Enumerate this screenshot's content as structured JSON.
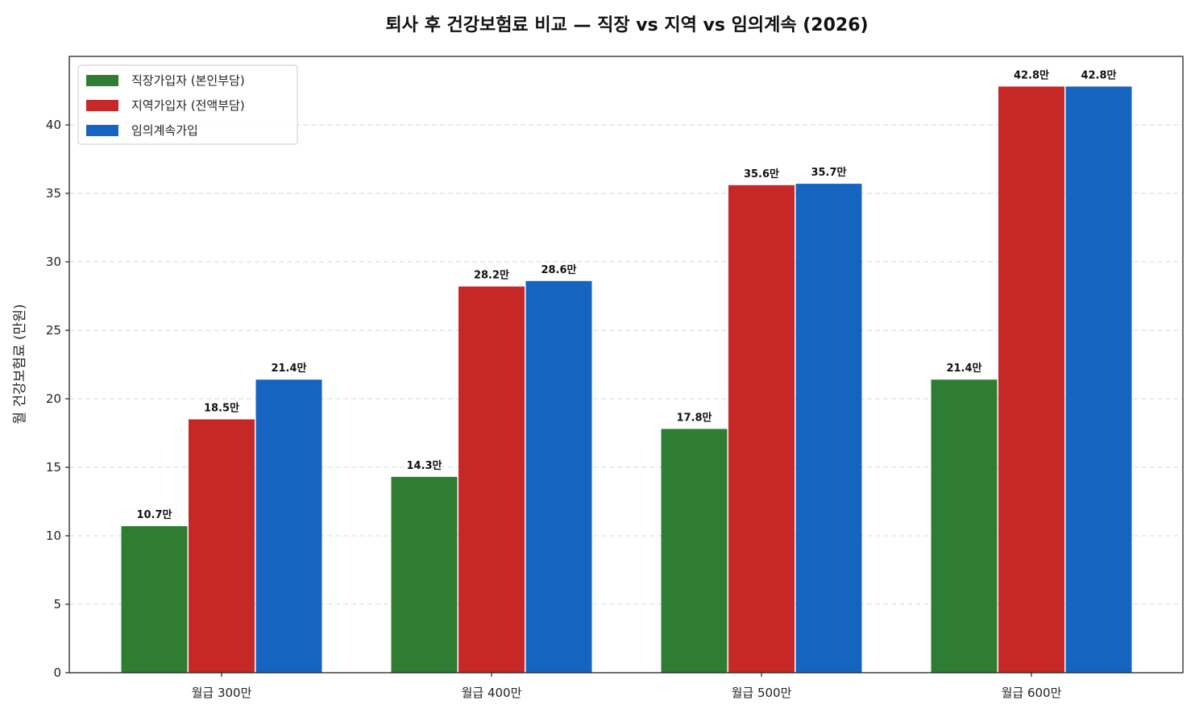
{
  "chart_data": {
    "type": "bar",
    "title": "퇴사 후 건강보험료 비교 — 직장 vs 지역 vs 임의계속 (2026)",
    "xlabel": "",
    "ylabel": "월 건강보험료 (만원)",
    "ylim": [
      0,
      45
    ],
    "yticks": [
      0,
      5,
      10,
      15,
      20,
      25,
      30,
      35,
      40
    ],
    "grid": "y-dashed",
    "legend_position": "top-left",
    "value_suffix": "만",
    "categories": [
      "월급 300만",
      "월급 400만",
      "월급 500만",
      "월급 600만"
    ],
    "series": [
      {
        "name": "직장가입자 (본인부담)",
        "color": "#2e7d32",
        "values": [
          10.7,
          14.3,
          17.8,
          21.4
        ],
        "labels": [
          "10.7만",
          "14.3만",
          "17.8만",
          "21.4만"
        ]
      },
      {
        "name": "지역가입자 (전액부담)",
        "color": "#c62828",
        "values": [
          18.5,
          28.2,
          35.6,
          42.8
        ],
        "labels": [
          "18.5만",
          "28.2만",
          "35.6만",
          "42.8만"
        ]
      },
      {
        "name": "임의계속가입",
        "color": "#1565c0",
        "values": [
          21.4,
          28.6,
          35.7,
          42.8
        ],
        "labels": [
          "21.4만",
          "28.6만",
          "35.7만",
          "42.8만"
        ]
      }
    ]
  }
}
